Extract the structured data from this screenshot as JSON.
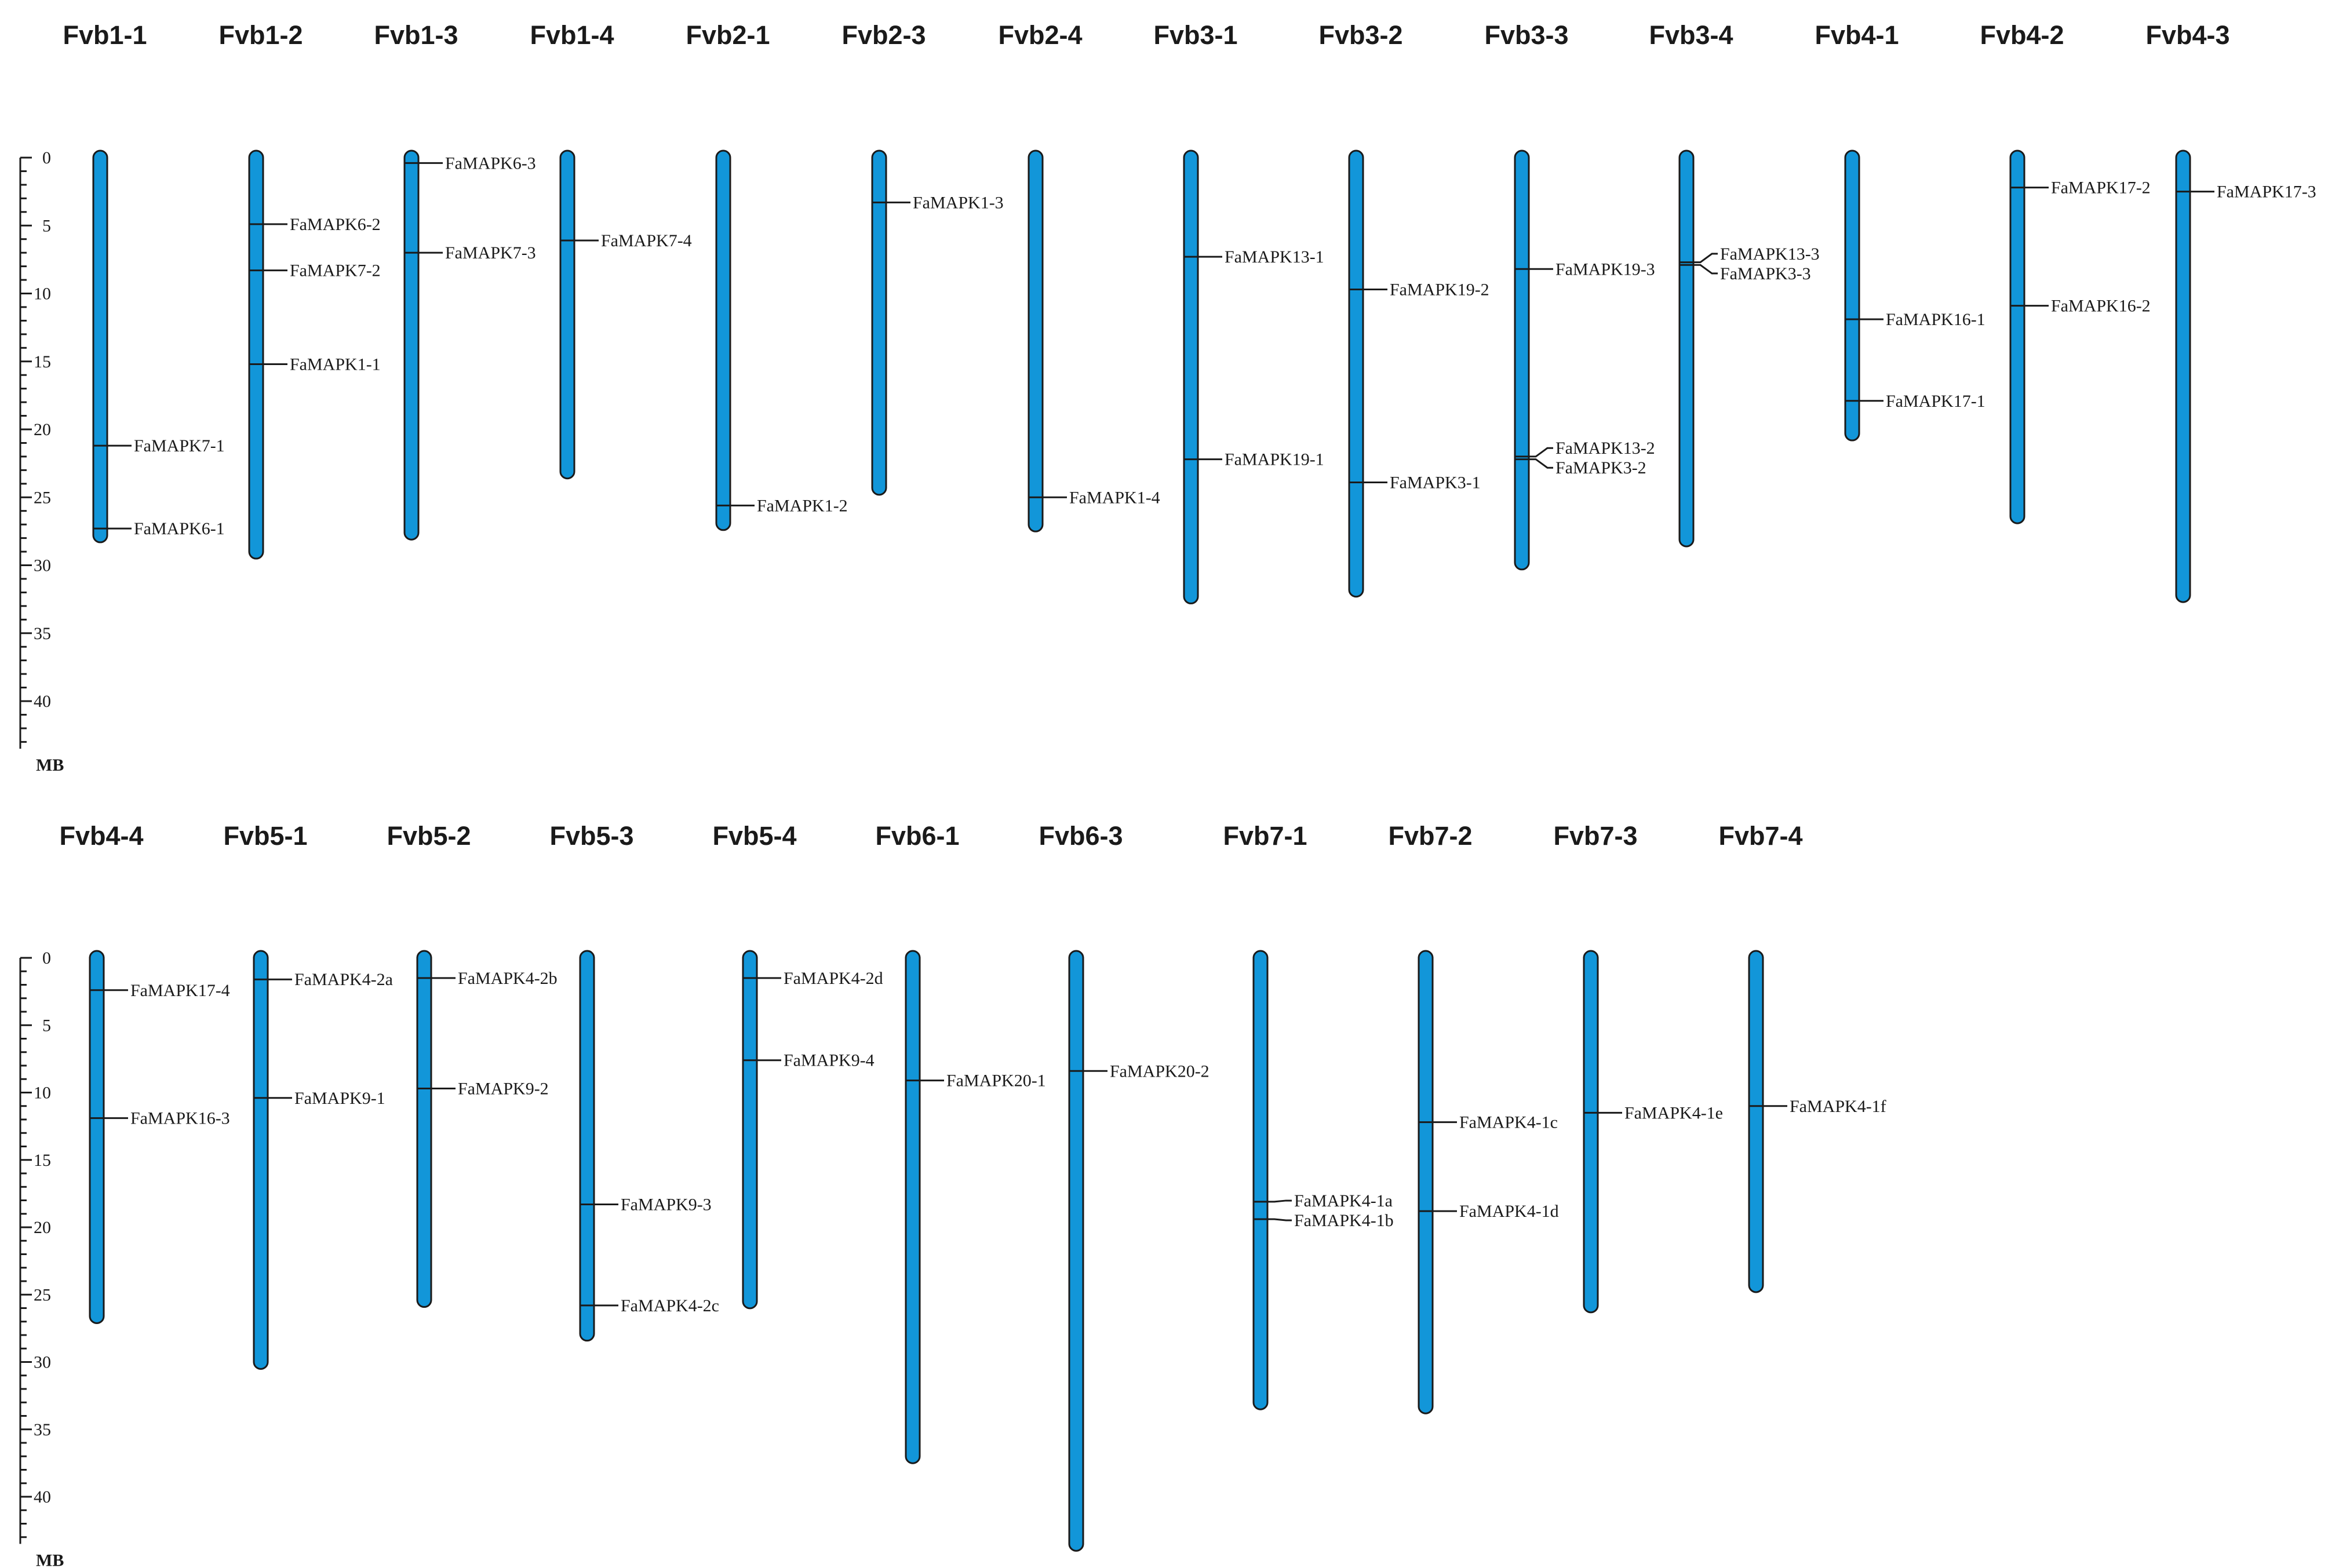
{
  "colors": {
    "chromosome": "#1296d9",
    "outline": "#1a1a1a",
    "text": "#1a1a1a"
  },
  "chart_data": {
    "type": "chromosome_map",
    "unit": "MB",
    "panels": [
      {
        "scale": {
          "ticks": [
            0,
            5,
            10,
            15,
            20,
            25,
            30,
            35,
            40
          ],
          "max": 43.5,
          "unit_label": "MB"
        },
        "chromosomes": [
          {
            "name": "Fvb1-1",
            "length": 27.8,
            "genes": [
              {
                "name": "FaMAPK7-1",
                "pos": 21.2
              },
              {
                "name": "FaMAPK6-1",
                "pos": 27.3
              }
            ]
          },
          {
            "name": "Fvb1-2",
            "length": 29.0,
            "genes": [
              {
                "name": "FaMAPK6-2",
                "pos": 4.9
              },
              {
                "name": "FaMAPK7-2",
                "pos": 8.3
              },
              {
                "name": "FaMAPK1-1",
                "pos": 15.2
              }
            ]
          },
          {
            "name": "Fvb1-3",
            "length": 27.6,
            "genes": [
              {
                "name": "FaMAPK6-3",
                "pos": 0.4
              },
              {
                "name": "FaMAPK7-3",
                "pos": 7.0
              }
            ]
          },
          {
            "name": "Fvb1-4",
            "length": 23.1,
            "genes": [
              {
                "name": "FaMAPK7-4",
                "pos": 6.1
              }
            ]
          },
          {
            "name": "Fvb2-1",
            "length": 26.9,
            "genes": [
              {
                "name": "FaMAPK1-2",
                "pos": 25.6
              }
            ]
          },
          {
            "name": "Fvb2-3",
            "length": 24.3,
            "genes": [
              {
                "name": "FaMAPK1-3",
                "pos": 3.3
              }
            ]
          },
          {
            "name": "Fvb2-4",
            "length": 27.0,
            "genes": [
              {
                "name": "FaMAPK1-4",
                "pos": 25.0
              }
            ]
          },
          {
            "name": "Fvb3-1",
            "length": 32.3,
            "genes": [
              {
                "name": "FaMAPK13-1",
                "pos": 7.3
              },
              {
                "name": "FaMAPK19-1",
                "pos": 22.2
              }
            ]
          },
          {
            "name": "Fvb3-2",
            "length": 31.8,
            "genes": [
              {
                "name": "FaMAPK19-2",
                "pos": 9.7
              },
              {
                "name": "FaMAPK3-1",
                "pos": 23.9
              }
            ]
          },
          {
            "name": "Fvb3-3",
            "length": 29.8,
            "genes": [
              {
                "name": "FaMAPK19-3",
                "pos": 8.2
              },
              {
                "name": "FaMAPK13-2",
                "pos": 22.0
              },
              {
                "name": "FaMAPK3-2",
                "pos": 22.2
              }
            ]
          },
          {
            "name": "Fvb3-4",
            "length": 28.1,
            "genes": [
              {
                "name": "FaMAPK13-3",
                "pos": 7.7
              },
              {
                "name": "FaMAPK3-3",
                "pos": 7.9
              }
            ]
          },
          {
            "name": "Fvb4-1",
            "length": 20.3,
            "genes": [
              {
                "name": "FaMAPK16-1",
                "pos": 11.9
              },
              {
                "name": "FaMAPK17-1",
                "pos": 17.9
              }
            ]
          },
          {
            "name": "Fvb4-2",
            "length": 26.4,
            "genes": [
              {
                "name": "FaMAPK17-2",
                "pos": 2.2
              },
              {
                "name": "FaMAPK16-2",
                "pos": 10.9
              }
            ]
          },
          {
            "name": "Fvb4-3",
            "length": 32.2,
            "genes": [
              {
                "name": "FaMAPK17-3",
                "pos": 2.5
              }
            ]
          }
        ]
      },
      {
        "scale": {
          "ticks": [
            0,
            5,
            10,
            15,
            20,
            25,
            30,
            35,
            40
          ],
          "max": 43.5,
          "unit_label": "MB"
        },
        "chromosomes": [
          {
            "name": "Fvb4-4",
            "length": 26.6,
            "genes": [
              {
                "name": "FaMAPK17-4",
                "pos": 2.4
              },
              {
                "name": "FaMAPK16-3",
                "pos": 11.9
              }
            ]
          },
          {
            "name": "Fvb5-1",
            "length": 30.0,
            "genes": [
              {
                "name": "FaMAPK4-2a",
                "pos": 1.6
              },
              {
                "name": "FaMAPK9-1",
                "pos": 10.4
              }
            ]
          },
          {
            "name": "Fvb5-2",
            "length": 25.4,
            "genes": [
              {
                "name": "FaMAPK4-2b",
                "pos": 1.5
              },
              {
                "name": "FaMAPK9-2",
                "pos": 9.7
              }
            ]
          },
          {
            "name": "Fvb5-3",
            "length": 27.9,
            "genes": [
              {
                "name": "FaMAPK9-3",
                "pos": 18.3
              },
              {
                "name": "FaMAPK4-2c",
                "pos": 25.8
              }
            ]
          },
          {
            "name": "Fvb5-4",
            "length": 25.5,
            "genes": [
              {
                "name": "FaMAPK4-2d",
                "pos": 1.5
              },
              {
                "name": "FaMAPK9-4",
                "pos": 7.6
              }
            ]
          },
          {
            "name": "Fvb6-1",
            "length": 37.0,
            "genes": [
              {
                "name": "FaMAPK20-1",
                "pos": 9.1
              }
            ]
          },
          {
            "name": "Fvb6-3",
            "length": 43.5,
            "genes": [
              {
                "name": "FaMAPK20-2",
                "pos": 8.4
              }
            ]
          },
          {
            "name": "Fvb7-1",
            "length": 33.0,
            "genes": [
              {
                "name": "FaMAPK4-1a",
                "pos": 18.1
              },
              {
                "name": "FaMAPK4-1b",
                "pos": 19.4
              }
            ]
          },
          {
            "name": "Fvb7-2",
            "length": 33.3,
            "genes": [
              {
                "name": "FaMAPK4-1c",
                "pos": 12.2
              },
              {
                "name": "FaMAPK4-1d",
                "pos": 18.8
              }
            ]
          },
          {
            "name": "Fvb7-3",
            "length": 25.8,
            "genes": [
              {
                "name": "FaMAPK4-1e",
                "pos": 11.5
              }
            ]
          },
          {
            "name": "Fvb7-4",
            "length": 24.3,
            "genes": [
              {
                "name": "FaMAPK4-1f",
                "pos": 11.0
              }
            ]
          }
        ]
      }
    ]
  }
}
